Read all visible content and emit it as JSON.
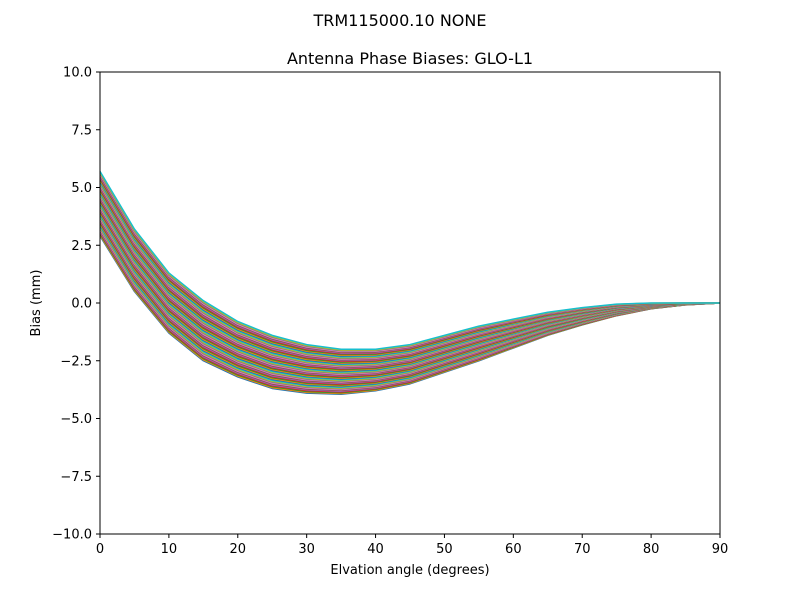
{
  "chart_data": {
    "type": "line",
    "suptitle": "TRM115000.10    NONE",
    "title": "Antenna Phase Biases: GLO-L1",
    "xlabel": "Elvation angle (degrees)",
    "ylabel": "Bias (mm)",
    "xlim": [
      0,
      90
    ],
    "ylim": [
      -10,
      10
    ],
    "xticks": [
      0,
      10,
      20,
      30,
      40,
      50,
      60,
      70,
      80,
      90
    ],
    "xtick_labels": [
      "0",
      "10",
      "20",
      "30",
      "40",
      "50",
      "60",
      "70",
      "80",
      "90"
    ],
    "yticks": [
      10,
      7.5,
      5,
      2.5,
      0,
      -2.5,
      -5,
      -7.5,
      -10
    ],
    "ytick_labels": [
      "10.0",
      "7.5",
      "5.0",
      "2.5",
      "0.0",
      "−2.5",
      "−5.0",
      "−7.5",
      "−10.0"
    ],
    "grid": false,
    "legend": "none",
    "x": [
      0,
      5,
      10,
      15,
      20,
      25,
      30,
      35,
      40,
      45,
      50,
      55,
      60,
      65,
      70,
      75,
      80,
      85,
      90
    ],
    "envelope_upper": [
      5.7,
      3.2,
      1.3,
      0.1,
      -0.8,
      -1.4,
      -1.8,
      -2.0,
      -2.0,
      -1.8,
      -1.4,
      -1.0,
      -0.7,
      -0.4,
      -0.2,
      -0.05,
      0.0,
      0.0,
      0.0
    ],
    "envelope_lower": [
      2.9,
      0.5,
      -1.3,
      -2.5,
      -3.2,
      -3.7,
      -3.9,
      -3.95,
      -3.8,
      -3.5,
      -3.0,
      -2.5,
      -1.95,
      -1.4,
      -0.95,
      -0.55,
      -0.25,
      -0.08,
      0.0
    ],
    "series_count": 60,
    "colors": [
      "#1f77b4",
      "#ff7f0e",
      "#2ca02c",
      "#d62728",
      "#9467bd",
      "#8c564b",
      "#e377c2",
      "#7f7f7f",
      "#bcbd22",
      "#17becf"
    ]
  }
}
